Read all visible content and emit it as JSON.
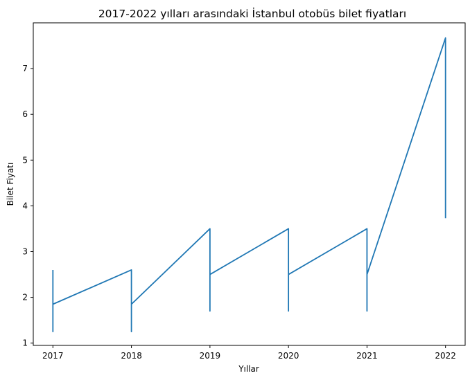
{
  "chart_data": {
    "type": "line",
    "title": "2017-2022 yılları arasındaki İstanbul otobüs bilet fiyatları",
    "xlabel": "Yıllar",
    "ylabel": "Bilet Fiyatı",
    "xlim": [
      2016.75,
      2022.25
    ],
    "ylim": [
      0.95,
      8.0
    ],
    "x_ticks": [
      2017,
      2018,
      2019,
      2020,
      2021,
      2022
    ],
    "y_ticks": [
      1,
      2,
      3,
      4,
      5,
      6,
      7
    ],
    "grid": false,
    "legend": "none",
    "colors": {
      "line": "#1f77b4"
    },
    "series": [
      {
        "x": [
          2017,
          2017,
          2017,
          2017,
          2018,
          2018,
          2018,
          2019,
          2019,
          2019,
          2020,
          2020,
          2020,
          2021,
          2021,
          2021,
          2022,
          2022
        ],
        "y": [
          2.6,
          1.25,
          1.3,
          1.85,
          2.6,
          1.25,
          1.85,
          3.5,
          1.7,
          2.5,
          3.5,
          1.7,
          2.5,
          3.5,
          1.7,
          2.5,
          7.67,
          3.73
        ]
      }
    ]
  }
}
